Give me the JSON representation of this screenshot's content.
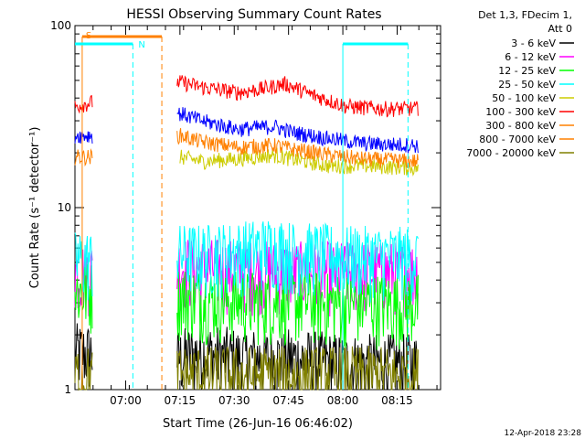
{
  "chart_data": {
    "type": "line",
    "title": "HESSI Observing Summary Count Rates",
    "xlabel": "Start Time (26-Jun-16 06:46:02)",
    "ylabel": "Count Rate (s⁻¹ detector⁻¹)",
    "y_scale": "log",
    "ylim": [
      1,
      100
    ],
    "xlim_minutes_after_0646": [
      0,
      101
    ],
    "x_ticks": [
      {
        "label": "07:00",
        "min": 14
      },
      {
        "label": "07:15",
        "min": 29
      },
      {
        "label": "07:30",
        "min": 44
      },
      {
        "label": "07:45",
        "min": 59
      },
      {
        "label": "08:00",
        "min": 74
      },
      {
        "label": "08:15",
        "min": 89
      }
    ],
    "y_ticks": [
      {
        "label": "1",
        "value": 1
      },
      {
        "label": "10",
        "value": 10
      },
      {
        "label": "100",
        "value": 100
      }
    ],
    "legend": {
      "header": [
        "Det 1,3, FDecim 1,",
        "Att 0"
      ],
      "placement": "right"
    },
    "series": [
      {
        "name": "3 - 6 keV",
        "color": "#000000",
        "points": [
          [
            0,
            1.6
          ],
          [
            5,
            1.6
          ],
          [
            29,
            1.5
          ],
          [
            35,
            1.6
          ],
          [
            45,
            1.5
          ],
          [
            60,
            1.5
          ],
          [
            75,
            1.4
          ],
          [
            95,
            1.4
          ]
        ]
      },
      {
        "name": "6 - 12 keV",
        "color": "#ff00ff",
        "points": [
          [
            0,
            4.5
          ],
          [
            5,
            4.5
          ],
          [
            29,
            4.8
          ],
          [
            35,
            4.7
          ],
          [
            45,
            4.6
          ],
          [
            60,
            4.5
          ],
          [
            75,
            4.5
          ],
          [
            95,
            4.5
          ]
        ]
      },
      {
        "name": "12 - 25 keV",
        "color": "#00ff00",
        "points": [
          [
            0,
            3.5
          ],
          [
            5,
            3.5
          ],
          [
            29,
            3.3
          ],
          [
            35,
            3.2
          ],
          [
            45,
            3.1
          ],
          [
            60,
            3.1
          ],
          [
            75,
            3.0
          ],
          [
            95,
            3.0
          ]
        ]
      },
      {
        "name": "25 - 50 keV",
        "color": "#00ffff",
        "points": [
          [
            0,
            5.2
          ],
          [
            5,
            5.2
          ],
          [
            29,
            5.6
          ],
          [
            35,
            5.6
          ],
          [
            45,
            5.8
          ],
          [
            55,
            6.2
          ],
          [
            60,
            5.8
          ],
          [
            75,
            5.5
          ],
          [
            95,
            5.4
          ]
        ]
      },
      {
        "name": "50 - 100 keV",
        "color": "#cccc00",
        "points": [
          [
            29,
            19
          ],
          [
            35,
            18
          ],
          [
            45,
            18.5
          ],
          [
            55,
            19.5
          ],
          [
            60,
            18.5
          ],
          [
            70,
            17
          ],
          [
            80,
            17
          ],
          [
            95,
            16.5
          ]
        ]
      },
      {
        "name": "100 - 300 keV",
        "color": "#ff0000",
        "points": [
          [
            0,
            36
          ],
          [
            5,
            38
          ],
          [
            29,
            49
          ],
          [
            35,
            46
          ],
          [
            45,
            43
          ],
          [
            52,
            45
          ],
          [
            58,
            48
          ],
          [
            65,
            42
          ],
          [
            75,
            36
          ],
          [
            85,
            35
          ],
          [
            95,
            35
          ]
        ]
      },
      {
        "name": "300 - 800 keV",
        "color": "#ff8000",
        "points": [
          [
            0,
            19
          ],
          [
            5,
            19
          ],
          [
            29,
            25
          ],
          [
            35,
            23
          ],
          [
            45,
            21.5
          ],
          [
            55,
            22
          ],
          [
            60,
            21
          ],
          [
            70,
            19.5
          ],
          [
            80,
            18.5
          ],
          [
            95,
            18
          ]
        ]
      },
      {
        "name": "800 - 7000 keV",
        "color": "#ff8000",
        "points": []
      },
      {
        "name": "7000 - 20000 keV",
        "color": "#808000",
        "points": [
          [
            0,
            1.2
          ],
          [
            5,
            1.2
          ],
          [
            29,
            1.2
          ],
          [
            95,
            1.2
          ]
        ]
      },
      {
        "name": "",
        "color": "#0000ff",
        "points": [
          [
            0,
            25
          ],
          [
            5,
            25
          ],
          [
            29,
            33
          ],
          [
            35,
            30
          ],
          [
            45,
            27
          ],
          [
            55,
            28
          ],
          [
            60,
            26
          ],
          [
            70,
            24
          ],
          [
            80,
            22.5
          ],
          [
            95,
            22
          ]
        ]
      }
    ],
    "annotations": {
      "top_label_s": "S",
      "top_label_n": "N",
      "s_line_color": "#ff8000",
      "n_line_color": "#00ffff"
    }
  },
  "footer": {
    "date_stamp": "12-Apr-2018 23:28"
  }
}
